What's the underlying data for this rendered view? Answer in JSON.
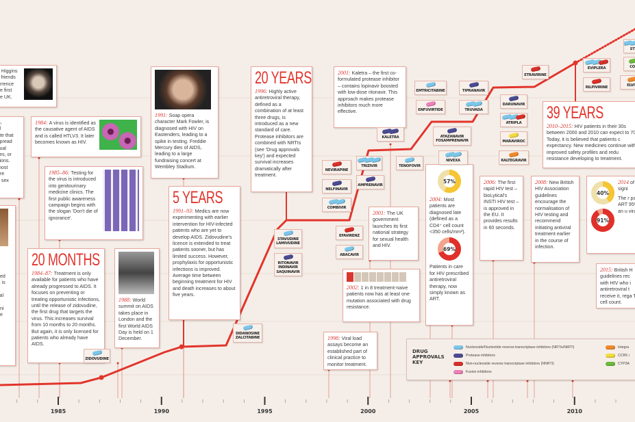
{
  "colors": {
    "accent": "#e2342b",
    "background": "#f5eee8",
    "nrti": "#7cc6ea",
    "pi": "#4b4c93",
    "nnrti": "#d9302a",
    "fusion": "#ec82b8",
    "integrase": "#f08a2c",
    "ccr5": "#f3db3c",
    "cyp3a": "#6cbb3c"
  },
  "events": [
    {
      "id": "higgins",
      "year": "",
      "lines": [
        "e Higgins",
        "s friends",
        "errence",
        "he first",
        "he UK."
      ],
      "photo": "portrait-photo"
    },
    {
      "id": "aids-partial",
      "year": "",
      "lines": [
        "S,",
        "al",
        "ate that",
        "spread",
        "xual",
        "lles, or",
        "sions.",
        "most",
        "are",
        "e sex"
      ]
    },
    {
      "id": "left-partial",
      "year": "",
      "lines": [
        "ded",
        "K is",
        "",
        "n",
        "yal",
        ",",
        "rini",
        "",
        "he"
      ],
      "photo": "building-photo"
    },
    {
      "id": "e1984",
      "year": "1984:",
      "text": "A virus is identified as the causative agent of AIDS and is called HTLV3. It later becomes known as HIV.",
      "photo": "virus-photo"
    },
    {
      "id": "e1985",
      "year": "1985–86:",
      "text": "Testing for the virus is introduced into genitourinary medicine clinics. The first public awareness campaign begins with the slogan 'Don't die of ignorance'.",
      "photo": "test-tubes-photo"
    },
    {
      "id": "months20",
      "headline": "20 MONTHS",
      "year": "1984–87:",
      "text": "Treatment is only available for patients who have already progressed to AIDS. It focuses on preventing or treating opportunistic infections, until the release of zidovudine, the first drug that targets the virus. This increases survival from 10 months to 20 months. But again, it is only licensed for patients who already have AIDS."
    },
    {
      "id": "e1988",
      "year": "1988:",
      "text": "World summit on AIDS takes place in London and the first World AIDS Day is held on 1 December.",
      "photo": "summit-photo"
    },
    {
      "id": "e1991",
      "year": "1991:",
      "text": "Soap opera character Mark Fowler, is diagnosed with HIV on Eastenders, leading to a spike in testing. Freddie Mercury dies of AIDS, leading to a large fundraising concert at Wembley Stadium.",
      "photo": "actor-photo"
    },
    {
      "id": "years5",
      "headline": "5 YEARS",
      "year": "1991–93:",
      "text": "Medics are now experimenting with earlier intervention for HIV-infected patients who are yet to develop AIDS. Zidovudine's licence is extended to treat patients sooner, but has limited success. However, prophylaxis for opportunistic infections is improved. Average time between beginning treatment for HIV and death increases to about five years."
    },
    {
      "id": "years20",
      "headline": "20 YEARS",
      "year": "1996:",
      "text": "Highly active antiretroviral therapy, defined as a combination of at least three drugs, is introduced as a new standard of care. Protease inhibitors are combined with NRTIs (see 'Drug approvals key') and expected survival increases dramatically after treatment."
    },
    {
      "id": "e2001k",
      "year": "2001:",
      "text": "Kaletra – the first co-formulated protease inhibitor – contains lopinavir boosted with low-dose ritonavir. This approach makes protease inhibitors much more effective."
    },
    {
      "id": "e2001uk",
      "year": "2001:",
      "text": "The UK government launches its first national strategy for sexual health and HIV."
    },
    {
      "id": "e2002",
      "year": "2002:",
      "text": "1 in 8 treatment-naive patients now has at least one mutation associated with drug resistance.",
      "people_highlighted": 1,
      "people_total": 8
    },
    {
      "id": "e1998",
      "year": "1998:",
      "text": "Viral load assays become an established part of clinical practice to monitor treatment."
    },
    {
      "id": "e2004",
      "year": "2004:",
      "text": "Most patients are diagnosed late (defined as a CD4⁺ cell count <350 cells/mm³).",
      "donut1": {
        "label": "57%",
        "value": 57,
        "color": "#f5c532",
        "track": "#efe0aa"
      },
      "text2": "Patients in care for HIV prescribed antiretroviral therapy, now simply known as ART.",
      "donut2": {
        "label": "69%",
        "value": 69,
        "color": "#e0302a",
        "track": "#f1a48e"
      }
    },
    {
      "id": "e2006",
      "year": "2006:",
      "text": "The first rapid HIV test – bioLytical's INSTI HIV test – is approved in the EU. It provides results in 60 seconds."
    },
    {
      "id": "e2008",
      "year": "2008:",
      "text": "New British HIV Association guidelines encourage the normalisation of HIV testing and recommend initiating antiviral treatment earlier in the course of infection."
    },
    {
      "id": "years39",
      "headline": "39 YEARS",
      "year": "2010–2015:",
      "text": "HIV patients in their 30s between 2000 and 2010 can expect to 70s. Today, it is believed that patients c expectancy. New medicines continue with improved safety profiles and redu resistance developing to treatment."
    },
    {
      "id": "e2014",
      "year": "2014",
      "text": "of HIV signi",
      "text2": "The r patie ART 95% an u viral l",
      "donut1": {
        "label": "40%",
        "value": 40,
        "color": "#f5c532",
        "track": "#efe0aa"
      },
      "donut2": {
        "label": "91%",
        "value": 91,
        "color": "#e0302a",
        "track": "#f1a48e"
      }
    },
    {
      "id": "e2015",
      "year": "2015:",
      "text": "British H guidelines rec with HIV who i antiretroviral t receive it, rega T-cell count."
    }
  ],
  "drugs": [
    {
      "id": "zidovudine",
      "names": [
        "ZIDOVUDINE"
      ],
      "pills": [
        "nrti"
      ]
    },
    {
      "id": "didanosine",
      "names": [
        "DIDANOSINE",
        "ZALCITABINE"
      ],
      "pills": [
        "nrti"
      ]
    },
    {
      "id": "stavudine",
      "names": [
        "STAVUDINE",
        "LAMIVUDINE"
      ],
      "pills": [
        "nrti"
      ]
    },
    {
      "id": "ritonavir",
      "names": [
        "RITONAVIR",
        "INDINAVIR",
        "SAQUINAVIR"
      ],
      "pills": [
        "pi"
      ]
    },
    {
      "id": "nevirapine",
      "names": [
        "NEVIRAPINE"
      ],
      "pills": [
        "nnrti"
      ]
    },
    {
      "id": "nelfinavir",
      "names": [
        "NELFINAVIR"
      ],
      "pills": [
        "pi"
      ]
    },
    {
      "id": "combivir",
      "names": [
        "COMBIVIR"
      ],
      "pills": [
        "nrti",
        "nrti"
      ]
    },
    {
      "id": "efavirenz",
      "names": [
        "EFAVIRENZ"
      ],
      "pills": [
        "nnrti"
      ]
    },
    {
      "id": "abacavir",
      "names": [
        "ABACAVIR"
      ],
      "pills": [
        "nrti"
      ]
    },
    {
      "id": "trizivir",
      "names": [
        "TRIZIVIR"
      ],
      "pills": [
        "nrti",
        "nrti",
        "nrti"
      ]
    },
    {
      "id": "amprenavir",
      "names": [
        "AMPRENAVIR"
      ],
      "pills": [
        "pi"
      ]
    },
    {
      "id": "kaletra",
      "names": [
        "KALETRA"
      ],
      "pills": [
        "pi",
        "pi"
      ]
    },
    {
      "id": "tenofovir",
      "names": [
        "TENOFOVIR"
      ],
      "pills": [
        "nrti"
      ]
    },
    {
      "id": "emtricitabine",
      "names": [
        "EMTRICITABINE"
      ],
      "pills": [
        "nrti"
      ]
    },
    {
      "id": "enfuvirtide",
      "names": [
        "ENFUVIRTIDE"
      ],
      "pills": [
        "fusion"
      ]
    },
    {
      "id": "tipranavir",
      "names": [
        "TIPRANAVIR"
      ],
      "pills": [
        "pi"
      ]
    },
    {
      "id": "truvada",
      "names": [
        "TRUVADA"
      ],
      "pills": [
        "nrti",
        "nrti"
      ]
    },
    {
      "id": "atazanavir",
      "names": [
        "ATAZANAVIR",
        "FOSAMPRENAVIR"
      ],
      "pills": [
        "pi"
      ]
    },
    {
      "id": "nivexa",
      "names": [
        "NIVEXA"
      ],
      "pills": [
        "nrti",
        "nrti"
      ]
    },
    {
      "id": "darunavir",
      "names": [
        "DARUNAVIR"
      ],
      "pills": [
        "pi"
      ]
    },
    {
      "id": "atripla",
      "names": [
        "ATRIPLA"
      ],
      "pills": [
        "nrti",
        "nrti",
        "nnrti"
      ]
    },
    {
      "id": "maraviroc",
      "names": [
        "MARAVIROC"
      ],
      "pills": [
        "ccr5"
      ]
    },
    {
      "id": "raltegravir",
      "names": [
        "RALTEGRAVIR"
      ],
      "pills": [
        "integrase"
      ]
    },
    {
      "id": "etravirine",
      "names": [
        "ETRAVIRINE"
      ],
      "pills": [
        "nnrti"
      ]
    },
    {
      "id": "eviplera",
      "names": [
        "EVIPLERA"
      ],
      "pills": [
        "nrti",
        "nrti",
        "nnrti"
      ]
    },
    {
      "id": "rilpivirine",
      "names": [
        "RILPIVIRINE"
      ],
      "pills": [
        "nnrti"
      ]
    },
    {
      "id": "stribild",
      "names": [
        "STR"
      ],
      "pills": [
        "nrti",
        "nrti",
        "integrase"
      ]
    },
    {
      "id": "cobicistat",
      "names": [
        "COB"
      ],
      "pills": [
        "cyp3a"
      ]
    },
    {
      "id": "elvitegravir",
      "names": [
        "ELVIT"
      ],
      "pills": [
        "integrase"
      ]
    }
  ],
  "key": {
    "title": "DRUG APPROVALS KEY",
    "items": [
      {
        "cls": "nrti",
        "label": "Nucleoside/Nucleotide reverse-transcriptase inhibitors (NRTIs/NtRTI)"
      },
      {
        "cls": "pi",
        "label": "Protease inhibitors"
      },
      {
        "cls": "nnrti",
        "label": "Non-nucleoside reverse transcriptase inhibitors (NNRTI)"
      },
      {
        "cls": "fusion",
        "label": "Fusion inhibitors"
      },
      {
        "cls": "integrase",
        "label": "Integra"
      },
      {
        "cls": "ccr5",
        "label": "CCR5 i"
      },
      {
        "cls": "cyp3a",
        "label": "CYP3A"
      }
    ]
  },
  "axis": {
    "labels": [
      "1985",
      "1990",
      "1995",
      "2000",
      "2005",
      "2010"
    ]
  }
}
